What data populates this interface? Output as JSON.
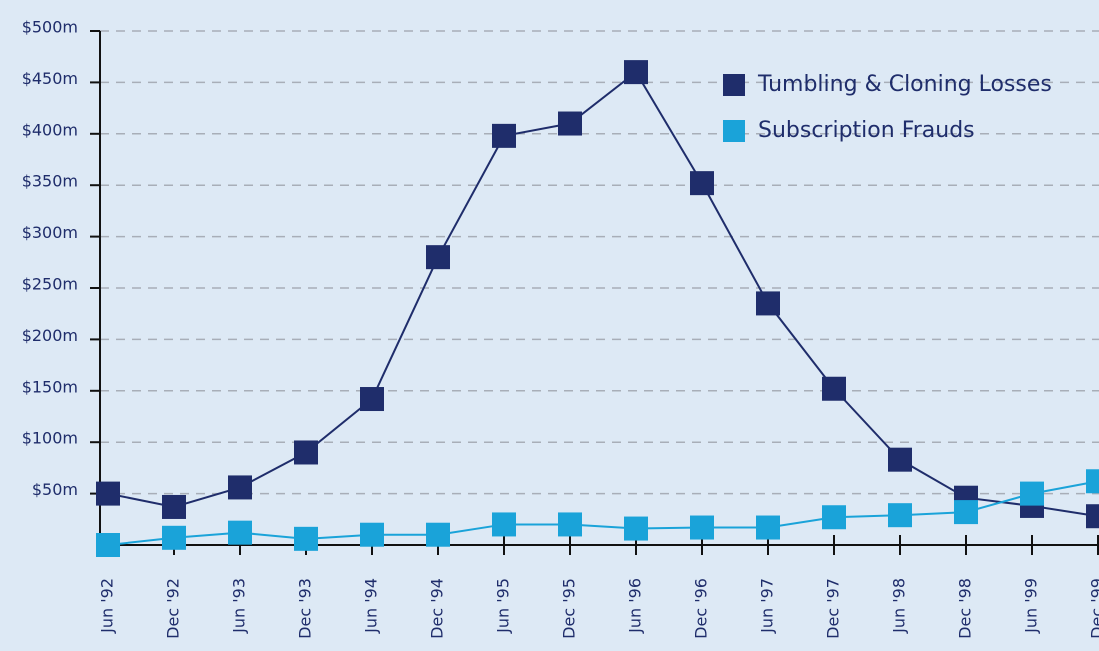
{
  "chart_data": {
    "type": "line",
    "categories": [
      "Jun '92",
      "Dec '92",
      "Jun '93",
      "Dec '93",
      "Jun '94",
      "Dec '94",
      "Jun '95",
      "Dec '95",
      "Jun '96",
      "Dec '96",
      "Jun '97",
      "Dec '97",
      "Jun '98",
      "Dec '98",
      "Jun '99",
      "Dec '99"
    ],
    "series": [
      {
        "name": "Tumbling & Cloning Losses",
        "color": "#1f2d6b",
        "values": [
          50,
          37,
          56,
          90,
          142,
          280,
          398,
          410,
          460,
          352,
          235,
          152,
          83,
          46,
          38,
          28
        ]
      },
      {
        "name": "Subscription Frauds",
        "color": "#1aa3d9",
        "values": [
          0,
          7,
          12,
          6,
          10,
          10,
          20,
          20,
          16,
          17,
          17,
          27,
          29,
          32,
          50,
          62
        ]
      }
    ],
    "ylim": [
      0,
      500
    ],
    "yticks": [
      {
        "value": 50,
        "label": "$50m"
      },
      {
        "value": 100,
        "label": "$100m"
      },
      {
        "value": 150,
        "label": "$150m"
      },
      {
        "value": 200,
        "label": "$200m"
      },
      {
        "value": 250,
        "label": "$250m"
      },
      {
        "value": 300,
        "label": "$300m"
      },
      {
        "value": 350,
        "label": "$350m"
      },
      {
        "value": 400,
        "label": "$400m"
      },
      {
        "value": 450,
        "label": "$450m"
      },
      {
        "value": 500,
        "label": "$500m"
      }
    ],
    "grid": true,
    "legend": "top-right"
  }
}
